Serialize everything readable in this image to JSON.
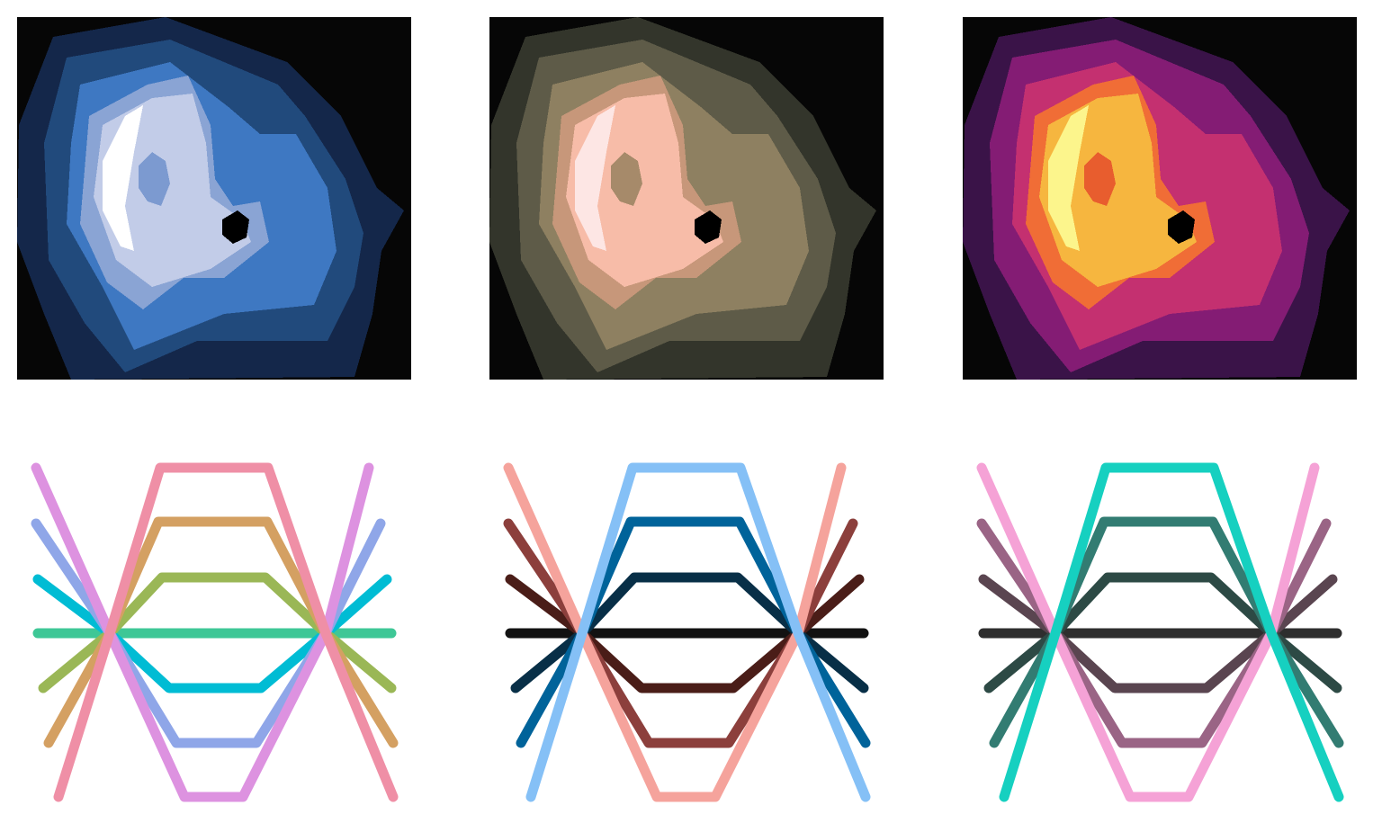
{
  "figure": {
    "heatmaps": [
      {
        "id": "heat-blue",
        "colormap": [
          "#060606",
          "#14274a",
          "#214a7c",
          "#3e78c2",
          "#8aa4d4",
          "#c2cce8",
          "#ffffff",
          "#7c9ad0"
        ]
      },
      {
        "id": "heat-copper",
        "colormap": [
          "#060606",
          "#33352b",
          "#5e5b48",
          "#8e8061",
          "#c7977a",
          "#f7bca8",
          "#fde6e4",
          "#a68a6a"
        ]
      },
      {
        "id": "heat-magma",
        "colormap": [
          "#060606",
          "#3a1348",
          "#841c74",
          "#c43070",
          "#f06d36",
          "#f6b63f",
          "#fcf58c",
          "#e85d2e"
        ]
      }
    ],
    "line_panels": [
      {
        "id": "lines-pastel",
        "colors": [
          "#3ec796",
          "#00bcd4",
          "#9ab756",
          "#8fa6e8",
          "#d4a062",
          "#dd92e0",
          "#ef8fa6"
        ]
      },
      {
        "id": "lines-dark",
        "colors": [
          "#121212",
          "#4a1d18",
          "#082f47",
          "#8c3f3c",
          "#00639a",
          "#f5a39c",
          "#85c0f6"
        ]
      },
      {
        "id": "lines-teal",
        "colors": [
          "#2e2e2e",
          "#5a4550",
          "#2d4a45",
          "#9a6485",
          "#327c72",
          "#f5a2d6",
          "#16d0c0"
        ]
      }
    ]
  }
}
